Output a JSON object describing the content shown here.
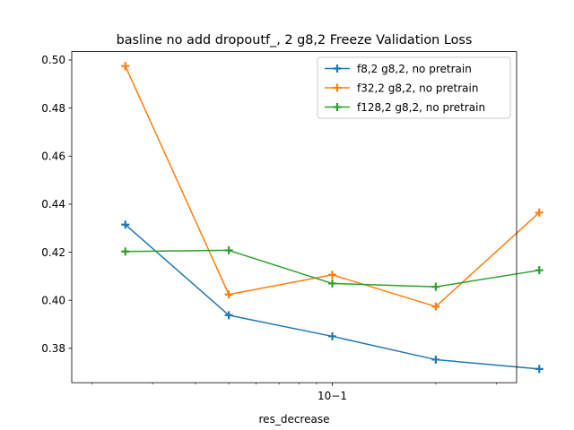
{
  "chart_data": {
    "type": "line",
    "title": "basline no add dropoutf_, 2 g8,2 Freeze Validation Loss",
    "xlabel": "res_decrease",
    "ylabel": "",
    "xscale": "log",
    "xlim": [
      0.01746,
      0.3437
    ],
    "ylim": [
      0.3657,
      0.5035
    ],
    "grid": false,
    "legend_position": "top-right",
    "x": [
      0.025,
      0.05,
      0.1,
      0.2,
      0.4
    ],
    "x_tick_labels": [
      {
        "value": 0.1,
        "label": "10−1"
      }
    ],
    "y_ticks": [
      0.38,
      0.4,
      0.42,
      0.44,
      0.46,
      0.48,
      0.5
    ],
    "y_tick_labels": [
      "0.38",
      "0.40",
      "0.42",
      "0.44",
      "0.46",
      "0.48",
      "0.50"
    ],
    "series": [
      {
        "name": "f8,2 g8,2, no pretrain",
        "color": "#1f77b4",
        "values": [
          0.4315,
          0.3938,
          0.385,
          0.3753,
          0.3714
        ]
      },
      {
        "name": "f32,2 g8,2, no pretrain",
        "color": "#ff7f0e",
        "values": [
          0.4975,
          0.4024,
          0.4106,
          0.3974,
          0.4365
        ]
      },
      {
        "name": "f128,2 g8,2, no pretrain",
        "color": "#2ca02c",
        "values": [
          0.4203,
          0.4208,
          0.407,
          0.4056,
          0.4125
        ]
      }
    ]
  }
}
